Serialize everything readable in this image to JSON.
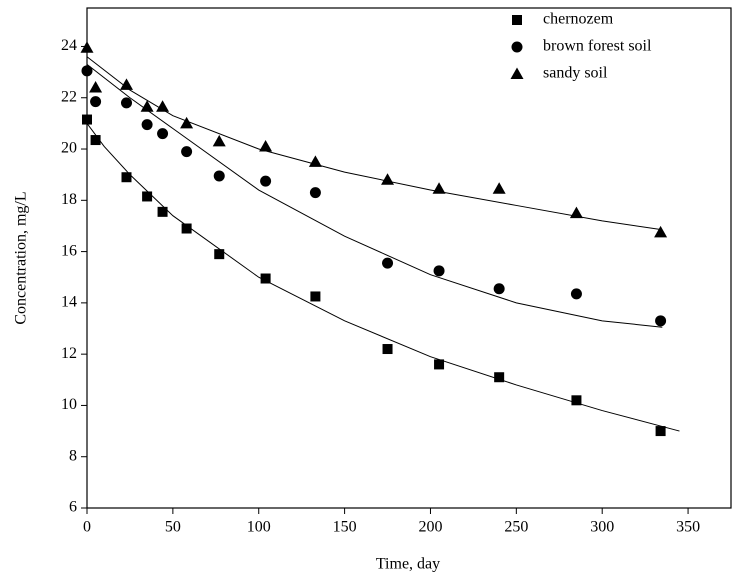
{
  "chart_data": {
    "type": "scatter",
    "x_label": "Time, day",
    "y_label": "Concentration, mg/L",
    "xlim": [
      0,
      375
    ],
    "ylim": [
      6,
      25.5
    ],
    "xticks": [
      0,
      50,
      100,
      150,
      200,
      250,
      300,
      350
    ],
    "yticks": [
      6,
      8,
      10,
      12,
      14,
      16,
      18,
      20,
      22,
      24
    ],
    "legend": "upper-right",
    "color": "#000000",
    "x": [
      0,
      5,
      23,
      35,
      44,
      58,
      77,
      104,
      133,
      175,
      205,
      240,
      285,
      334
    ],
    "series": [
      {
        "name": "chernozem",
        "marker": "square",
        "values": [
          21.15,
          20.35,
          18.9,
          18.15,
          17.55,
          16.9,
          15.9,
          14.95,
          14.25,
          12.2,
          11.6,
          11.1,
          10.2,
          9.0
        ],
        "fit": {
          "x": [
            0,
            10,
            25,
            50,
            100,
            150,
            200,
            250,
            300,
            345
          ],
          "values": [
            21.0,
            20.1,
            19.0,
            17.4,
            15.0,
            13.3,
            11.9,
            10.8,
            9.8,
            9.0
          ]
        }
      },
      {
        "name": "brown forest soil",
        "marker": "circle",
        "values": [
          23.05,
          21.85,
          21.8,
          20.95,
          20.6,
          19.9,
          18.95,
          18.75,
          18.3,
          15.55,
          15.25,
          14.55,
          14.35,
          13.3
        ],
        "fit": {
          "x": [
            0,
            25,
            50,
            100,
            150,
            200,
            250,
            300,
            335
          ],
          "values": [
            23.3,
            22.0,
            20.8,
            18.4,
            16.6,
            15.1,
            14.0,
            13.3,
            13.05
          ]
        }
      },
      {
        "name": "sandy soil",
        "marker": "triangle",
        "values": [
          23.95,
          22.4,
          22.5,
          21.65,
          21.65,
          21.0,
          20.3,
          20.1,
          19.5,
          18.8,
          18.45,
          18.45,
          17.5,
          16.75
        ],
        "fit": {
          "x": [
            0,
            25,
            50,
            100,
            150,
            200,
            250,
            300,
            335
          ],
          "values": [
            23.6,
            22.3,
            21.3,
            20.0,
            19.1,
            18.4,
            17.8,
            17.2,
            16.85
          ]
        }
      }
    ]
  }
}
